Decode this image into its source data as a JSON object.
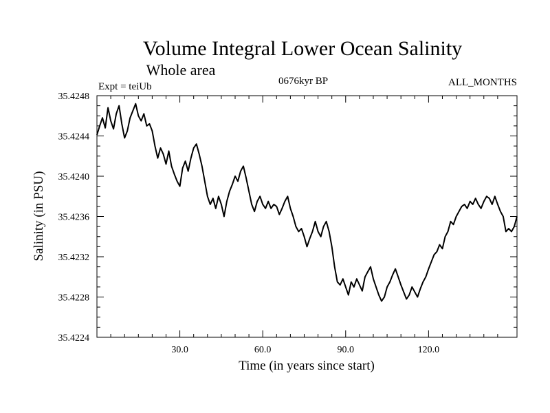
{
  "header": {
    "title": "Volume Integral Lower Ocean Salinity",
    "subtitle": "Whole area",
    "expt": "Expt = teiUb",
    "period": "0676kyr BP",
    "months": "ALL_MONTHS"
  },
  "chart_data": {
    "type": "line",
    "title": "Volume Integral Lower Ocean Salinity",
    "subtitle": "Whole area",
    "xlabel": "Time (in years since start)",
    "ylabel": "Salinity (in PSU)",
    "xlim": [
      0,
      152
    ],
    "ylim": [
      35.4224,
      35.4248
    ],
    "x_ticks": [
      30,
      60,
      90,
      120
    ],
    "x_tick_labels": [
      "30.0",
      "60.0",
      "90.0",
      "120.0"
    ],
    "y_ticks": [
      35.4224,
      35.4228,
      35.4232,
      35.4236,
      35.424,
      35.4244,
      35.4248
    ],
    "y_tick_labels": [
      "35.4224",
      "35.4228",
      "35.4232",
      "35.4236",
      "35.4240",
      "35.4244",
      "35.4248"
    ],
    "grid": false,
    "series": [
      {
        "name": "Salinity",
        "x": [
          0,
          1,
          2,
          3,
          4,
          5,
          6,
          7,
          8,
          9,
          10,
          11,
          12,
          13,
          14,
          15,
          16,
          17,
          18,
          19,
          20,
          21,
          22,
          23,
          24,
          25,
          26,
          27,
          28,
          29,
          30,
          31,
          32,
          33,
          34,
          35,
          36,
          37,
          38,
          39,
          40,
          41,
          42,
          43,
          44,
          45,
          46,
          47,
          48,
          49,
          50,
          51,
          52,
          53,
          54,
          55,
          56,
          57,
          58,
          59,
          60,
          61,
          62,
          63,
          64,
          65,
          66,
          67,
          68,
          69,
          70,
          71,
          72,
          73,
          74,
          75,
          76,
          77,
          78,
          79,
          80,
          81,
          82,
          83,
          84,
          85,
          86,
          87,
          88,
          89,
          90,
          91,
          92,
          93,
          94,
          95,
          96,
          97,
          98,
          99,
          100,
          101,
          102,
          103,
          104,
          105,
          106,
          107,
          108,
          109,
          110,
          111,
          112,
          113,
          114,
          115,
          116,
          117,
          118,
          119,
          120,
          121,
          122,
          123,
          124,
          125,
          126,
          127,
          128,
          129,
          130,
          131,
          132,
          133,
          134,
          135,
          136,
          137,
          138,
          139,
          140,
          141,
          142,
          143,
          144,
          145,
          146,
          147,
          148,
          149,
          150,
          151,
          152
        ],
        "values": [
          35.42441,
          35.4245,
          35.42458,
          35.42448,
          35.42468,
          35.42455,
          35.42447,
          35.42462,
          35.4247,
          35.42452,
          35.42438,
          35.42445,
          35.42458,
          35.42465,
          35.42472,
          35.4246,
          35.42455,
          35.42462,
          35.4245,
          35.42452,
          35.42445,
          35.4243,
          35.42418,
          35.42428,
          35.42422,
          35.42412,
          35.42425,
          35.4241,
          35.42402,
          35.42395,
          35.4239,
          35.42408,
          35.42415,
          35.42405,
          35.42418,
          35.42428,
          35.42432,
          35.42422,
          35.4241,
          35.42395,
          35.4238,
          35.42372,
          35.42378,
          35.42368,
          35.4238,
          35.42372,
          35.4236,
          35.42375,
          35.42385,
          35.42392,
          35.424,
          35.42395,
          35.42405,
          35.4241,
          35.42398,
          35.42385,
          35.42372,
          35.42365,
          35.42375,
          35.4238,
          35.42372,
          35.42368,
          35.42375,
          35.42368,
          35.42372,
          35.4237,
          35.42362,
          35.42368,
          35.42375,
          35.4238,
          35.42368,
          35.4236,
          35.4235,
          35.42345,
          35.42348,
          35.4234,
          35.4233,
          35.42338,
          35.42345,
          35.42355,
          35.42345,
          35.4234,
          35.4235,
          35.42355,
          35.42345,
          35.4233,
          35.4231,
          35.42295,
          35.42292,
          35.42298,
          35.4229,
          35.42282,
          35.42295,
          35.4229,
          35.42298,
          35.42292,
          35.42286,
          35.423,
          35.42305,
          35.4231,
          35.42298,
          35.4229,
          35.42282,
          35.42276,
          35.4228,
          35.4229,
          35.42295,
          35.42302,
          35.42308,
          35.423,
          35.42292,
          35.42285,
          35.42278,
          35.42282,
          35.4229,
          35.42285,
          35.4228,
          35.42288,
          35.42295,
          35.423,
          35.42308,
          35.42315,
          35.42322,
          35.42325,
          35.42332,
          35.42328,
          35.4234,
          35.42345,
          35.42355,
          35.42352,
          35.4236,
          35.42365,
          35.4237,
          35.42372,
          35.42368,
          35.42375,
          35.42372,
          35.42378,
          35.42372,
          35.42368,
          35.42375,
          35.4238,
          35.42378,
          35.42372,
          35.4238,
          35.42372,
          35.42365,
          35.4236,
          35.42345,
          35.42348,
          35.42345,
          35.4235,
          35.4236
        ]
      }
    ]
  }
}
